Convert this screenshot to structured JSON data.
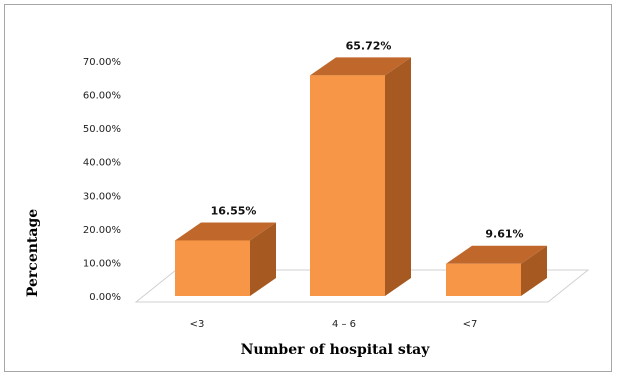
{
  "chart_data": {
    "type": "bar",
    "style": "3d-column",
    "categories": [
      "<3",
      "4 – 6",
      "<7"
    ],
    "values": [
      16.55,
      65.72,
      9.61
    ],
    "data_labels": [
      "16.55%",
      "65.72%",
      "9.61%"
    ],
    "xlabel": "Number of hospital stay",
    "ylabel": "Percentage",
    "ylim": [
      0,
      70
    ],
    "yticks": [
      0,
      10,
      20,
      30,
      40,
      50,
      60,
      70
    ],
    "ytick_labels": [
      "0.00%",
      "10.00%",
      "20.00%",
      "30.00%",
      "40.00%",
      "50.00%",
      "60.00%",
      "70.00%"
    ],
    "grid": false,
    "legend": "none",
    "colors": {
      "front": "#F79646",
      "top": "#C0682C",
      "side": "#A65A22",
      "floor": "#d0d0d0"
    }
  }
}
